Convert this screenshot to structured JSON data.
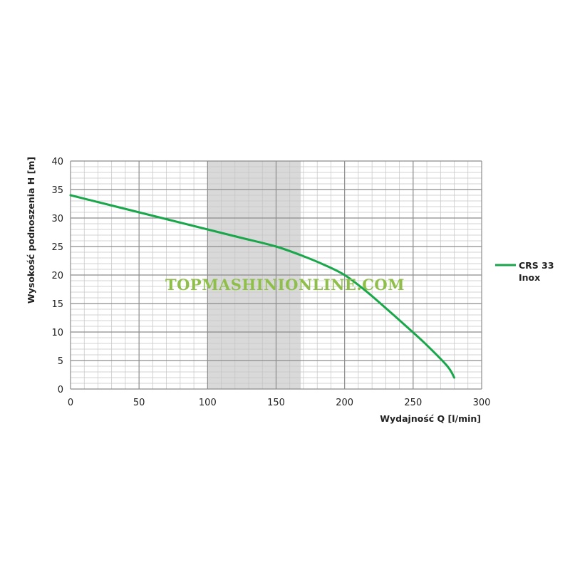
{
  "chart_data": {
    "type": "line",
    "title": "",
    "xlabel": "Wydajność Q [l/min]",
    "ylabel": "Wysokość podnoszenia H [m]",
    "xlim": [
      0,
      300
    ],
    "ylim": [
      0,
      40
    ],
    "x_ticks": [
      0,
      50,
      100,
      150,
      200,
      250,
      300
    ],
    "y_ticks": [
      0,
      5,
      10,
      15,
      20,
      25,
      30,
      35,
      40
    ],
    "x_minor_step": 10,
    "y_minor_step": 1,
    "grid": true,
    "shaded_region": {
      "x": [
        100,
        168
      ],
      "color": "#d9d9d9"
    },
    "legend_position": "right",
    "series": [
      {
        "name": [
          "CRS 33",
          "Inox"
        ],
        "color": "#1aa64a",
        "x": [
          0,
          25,
          50,
          75,
          100,
          125,
          150,
          170,
          185,
          200,
          215,
          230,
          245,
          260,
          275,
          280
        ],
        "y": [
          34,
          32.5,
          31,
          29.5,
          28,
          26.5,
          25,
          23.3,
          21.8,
          20,
          17.3,
          14.2,
          11,
          7.7,
          4.0,
          2
        ]
      }
    ]
  },
  "watermark": "TOPMASHINIONLINE.COM"
}
